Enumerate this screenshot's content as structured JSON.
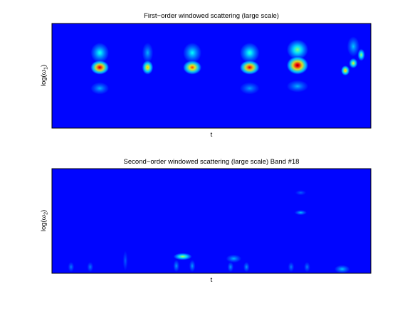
{
  "chart_data": [
    {
      "type": "heatmap",
      "title": "First−order windowed scattering (large scale)",
      "xlabel": "t",
      "ylabel_base": "log(ω",
      "ylabel_sub": "1",
      "ylabel_end": ")",
      "colormap": "jet",
      "ticks": "none",
      "background_level": 0.13,
      "blobs": [
        {
          "t": 0.15,
          "f": 0.58,
          "level": 0.95,
          "width": 0.03,
          "height": 0.07
        },
        {
          "t": 0.15,
          "f": 0.72,
          "level": 0.4,
          "width": 0.03,
          "height": 0.1
        },
        {
          "t": 0.15,
          "f": 0.38,
          "level": 0.3,
          "width": 0.03,
          "height": 0.06
        },
        {
          "t": 0.3,
          "f": 0.58,
          "level": 0.72,
          "width": 0.018,
          "height": 0.07
        },
        {
          "t": 0.3,
          "f": 0.72,
          "level": 0.3,
          "width": 0.018,
          "height": 0.1
        },
        {
          "t": 0.44,
          "f": 0.58,
          "level": 0.82,
          "width": 0.03,
          "height": 0.07
        },
        {
          "t": 0.44,
          "f": 0.72,
          "level": 0.38,
          "width": 0.03,
          "height": 0.1
        },
        {
          "t": 0.62,
          "f": 0.58,
          "level": 0.92,
          "width": 0.032,
          "height": 0.07
        },
        {
          "t": 0.62,
          "f": 0.72,
          "level": 0.42,
          "width": 0.032,
          "height": 0.1
        },
        {
          "t": 0.62,
          "f": 0.38,
          "level": 0.28,
          "width": 0.032,
          "height": 0.06
        },
        {
          "t": 0.77,
          "f": 0.6,
          "level": 1.0,
          "width": 0.035,
          "height": 0.09
        },
        {
          "t": 0.77,
          "f": 0.75,
          "level": 0.5,
          "width": 0.035,
          "height": 0.1
        },
        {
          "t": 0.77,
          "f": 0.4,
          "level": 0.3,
          "width": 0.035,
          "height": 0.06
        },
        {
          "t": 0.92,
          "f": 0.55,
          "level": 0.72,
          "width": 0.014,
          "height": 0.05
        },
        {
          "t": 0.945,
          "f": 0.62,
          "level": 0.62,
          "width": 0.014,
          "height": 0.05
        },
        {
          "t": 0.97,
          "f": 0.7,
          "level": 0.55,
          "width": 0.012,
          "height": 0.06
        },
        {
          "t": 0.945,
          "f": 0.78,
          "level": 0.32,
          "width": 0.02,
          "height": 0.1
        }
      ]
    },
    {
      "type": "heatmap",
      "title": "Second−order windowed scattering (large scale) Band #18",
      "xlabel": "t",
      "ylabel_base": "log(ω",
      "ylabel_sub": "2",
      "ylabel_end": ")",
      "colormap": "jet",
      "ticks": "none",
      "background_level": 0.13,
      "blobs": [
        {
          "t": 0.06,
          "f": 0.06,
          "level": 0.25,
          "width": 0.01,
          "height": 0.05
        },
        {
          "t": 0.12,
          "f": 0.06,
          "level": 0.25,
          "width": 0.01,
          "height": 0.05
        },
        {
          "t": 0.23,
          "f": 0.12,
          "level": 0.22,
          "width": 0.008,
          "height": 0.1
        },
        {
          "t": 0.41,
          "f": 0.16,
          "level": 0.55,
          "width": 0.03,
          "height": 0.035
        },
        {
          "t": 0.39,
          "f": 0.07,
          "level": 0.28,
          "width": 0.01,
          "height": 0.06
        },
        {
          "t": 0.44,
          "f": 0.07,
          "level": 0.28,
          "width": 0.01,
          "height": 0.06
        },
        {
          "t": 0.57,
          "f": 0.14,
          "level": 0.3,
          "width": 0.025,
          "height": 0.04
        },
        {
          "t": 0.56,
          "f": 0.06,
          "level": 0.28,
          "width": 0.01,
          "height": 0.05
        },
        {
          "t": 0.61,
          "f": 0.06,
          "level": 0.28,
          "width": 0.01,
          "height": 0.05
        },
        {
          "t": 0.75,
          "f": 0.06,
          "level": 0.25,
          "width": 0.01,
          "height": 0.05
        },
        {
          "t": 0.8,
          "f": 0.06,
          "level": 0.25,
          "width": 0.01,
          "height": 0.05
        },
        {
          "t": 0.78,
          "f": 0.58,
          "level": 0.32,
          "width": 0.02,
          "height": 0.025
        },
        {
          "t": 0.78,
          "f": 0.77,
          "level": 0.22,
          "width": 0.018,
          "height": 0.025
        },
        {
          "t": 0.91,
          "f": 0.04,
          "level": 0.32,
          "width": 0.025,
          "height": 0.04
        }
      ]
    }
  ]
}
